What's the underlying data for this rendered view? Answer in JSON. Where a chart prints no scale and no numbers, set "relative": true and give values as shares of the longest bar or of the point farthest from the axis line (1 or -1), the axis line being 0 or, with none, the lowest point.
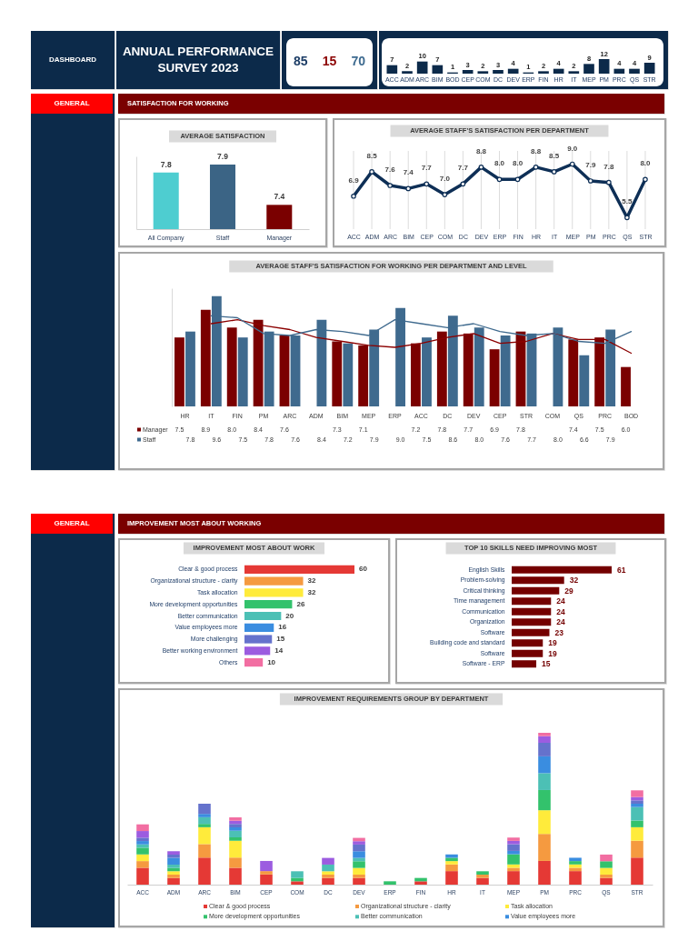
{
  "chart_data": [
    {
      "type": "other",
      "title": "ANNUAL PERFORMANCE SURVEY 2023",
      "annotations": [
        "DASHBOARD"
      ]
    },
    {
      "type": "other",
      "annotations": [
        "85",
        "15",
        "70"
      ],
      "colors": [
        "#1c3d66",
        "#8b0000",
        "#3d6a8f"
      ]
    },
    {
      "type": "bar",
      "categories": [
        "ACC",
        "ADM",
        "ARC",
        "BIM",
        "BOD",
        "CEP",
        "COM",
        "DC",
        "DEV",
        "ERP",
        "FIN",
        "HR",
        "IT",
        "MEP",
        "PM",
        "PRC",
        "QS",
        "STR"
      ],
      "values": [
        7,
        2,
        10,
        7,
        1,
        3,
        2,
        3,
        4,
        1,
        2,
        4,
        2,
        8,
        12,
        4,
        4,
        9
      ],
      "color": "#0c2a4a",
      "data_labels": true,
      "tick_labels": "x"
    },
    {
      "type": "other",
      "title": "SATISFACTION FOR WORKING",
      "annotations": [
        "GENERAL"
      ]
    },
    {
      "type": "bar",
      "title": "AVERAGE SATISFACTION",
      "categories": [
        "All Company",
        "Staff",
        "Manager"
      ],
      "values": [
        7.8,
        7.9,
        7.4
      ],
      "colors": [
        "#4ecdd0",
        "#3b6485",
        "#7a0000"
      ],
      "ylim": [
        7.1,
        8.0
      ],
      "data_labels": true,
      "tick_labels": "x"
    },
    {
      "type": "line",
      "title": "AVERAGE STAFF'S SATISFACTION PER DEPARTMENT",
      "categories": [
        "ACC",
        "ADM",
        "ARC",
        "BIM",
        "CEP",
        "COM",
        "DC",
        "DEV",
        "ERP",
        "FIN",
        "HR",
        "IT",
        "MEP",
        "PM",
        "PRC",
        "QS",
        "STR"
      ],
      "values": [
        6.9,
        8.5,
        7.6,
        7.4,
        7.7,
        7.0,
        7.7,
        8.8,
        8.0,
        8.0,
        8.8,
        8.5,
        9.0,
        7.9,
        7.8,
        5.5,
        8.0
      ],
      "value_labels": [
        "6.9",
        "8.5",
        "7.6",
        "7.4",
        "7.7",
        "7.0",
        "7.7",
        "8.8",
        "8.0",
        "8.0",
        "8.8",
        "8.5",
        "9.0",
        "7.9",
        "7.8",
        "5.5",
        "8.0"
      ],
      "color": "#0e2f56",
      "marker": "circle",
      "grid": "x",
      "tick_labels": "x"
    },
    {
      "type": "bar",
      "title": "AVERAGE STAFF'S SATISFACTION FOR WORKING PER DEPARTMENT AND LEVEL",
      "categories": [
        "HR",
        "IT",
        "FIN",
        "PM",
        "ARC",
        "ADM",
        "BIM",
        "MEP",
        "ERP",
        "ACC",
        "DC",
        "DEV",
        "CEP",
        "STR",
        "COM",
        "QS",
        "PRC",
        "BOD"
      ],
      "series": [
        {
          "name": "Manager",
          "color": "#7b0000",
          "values": [
            7.5,
            8.9,
            8.0,
            8.4,
            7.6,
            null,
            7.3,
            7.1,
            null,
            7.2,
            7.8,
            7.7,
            6.9,
            7.8,
            null,
            7.4,
            7.5,
            6.0
          ],
          "value_labels": [
            "7.5",
            "8.9",
            "8.0",
            "8.4",
            "7.6",
            null,
            "7.3",
            "7.1",
            null,
            "7.2",
            "7.8",
            "7.7",
            "6.9",
            "7.8",
            null,
            "7.4",
            "7.5",
            "6.0"
          ]
        },
        {
          "name": "Staff",
          "color": "#3f6a8e",
          "values": [
            7.8,
            9.6,
            7.5,
            7.8,
            7.6,
            8.4,
            7.2,
            7.9,
            9.0,
            7.5,
            8.6,
            8.0,
            7.6,
            7.7,
            8.0,
            6.6,
            7.9,
            null
          ],
          "value_labels": [
            "7.8",
            "9.6",
            "7.5",
            "7.8",
            "7.6",
            "8.4",
            "7.2",
            "7.9",
            "9.0",
            "7.5",
            "8.6",
            "8.0",
            "7.6",
            "7.7",
            "8.0",
            "6.6",
            "7.9",
            null
          ]
        },
        {
          "type": "line",
          "color": "#8b0000",
          "values": [
            null,
            8.2,
            8.4,
            8.1,
            7.9,
            7.5,
            7.3,
            7.1,
            7.0,
            7.2,
            7.5,
            7.7,
            7.2,
            7.3,
            7.7,
            7.4,
            7.4,
            6.7
          ]
        },
        {
          "type": "line",
          "color": "#3f6a8e",
          "values": [
            null,
            8.6,
            8.5,
            7.7,
            7.6,
            7.9,
            7.8,
            7.6,
            8.4,
            8.2,
            8.0,
            8.2,
            7.8,
            7.6,
            7.7,
            7.3,
            7.2,
            7.8
          ]
        }
      ],
      "ylim": [
        4,
        10
      ],
      "legend": "bottom left",
      "tick_labels": "x"
    },
    {
      "type": "other",
      "title": "IMPROVEMENT MOST ABOUT WORKING",
      "annotations": [
        "GENERAL"
      ]
    },
    {
      "type": "bar",
      "orientation": "horizontal",
      "title": "IMPROVEMENT MOST ABOUT WORK",
      "categories": [
        "Clear & good process",
        "Organizational structure - clarity",
        "Task allocation",
        "More development opportunities",
        "Better communication",
        "Value employees more",
        "More challenging",
        "Better working environment",
        "Others"
      ],
      "values": [
        60,
        32,
        32,
        26,
        20,
        16,
        15,
        14,
        10
      ],
      "colors": [
        "#e53935",
        "#f59a40",
        "#ffeb3b",
        "#33c26c",
        "#4cc0b5",
        "#3a8de0",
        "#6572cc",
        "#9c5ce0",
        "#f26ea2"
      ],
      "data_labels": true,
      "tick_labels": "y"
    },
    {
      "type": "bar",
      "orientation": "horizontal",
      "title": "TOP 10 SKILLS NEED IMPROVING MOST",
      "categories": [
        "English Skills",
        "Problem-solving",
        "Critical thinking",
        "Time management",
        "Communication",
        "Organization",
        "Software",
        "Building code and standard",
        "Software",
        "Software - ERP"
      ],
      "values": [
        61,
        32,
        29,
        24,
        24,
        24,
        23,
        19,
        19,
        15
      ],
      "color": "#740000",
      "data_labels": true,
      "tick_labels": "y"
    },
    {
      "type": "bar",
      "stacked": true,
      "relative": true,
      "title": "IMPROVEMENT REQUIREMENTS GROUP BY DEPARTMENT",
      "categories": [
        "ACC",
        "ADM",
        "ARC",
        "BIM",
        "CEP",
        "COM",
        "DC",
        "DEV",
        "ERP",
        "FIN",
        "HR",
        "IT",
        "MEP",
        "PM",
        "PRC",
        "QS",
        "STR"
      ],
      "series": [
        {
          "name": "Clear & good process",
          "color": "#e53935",
          "values": [
            0.111,
            0.044,
            0.178,
            0.111,
            0.067,
            0.022,
            0.044,
            0.044,
            null,
            0.022,
            0.089,
            0.044,
            0.089,
            0.156,
            0.089,
            0.044,
            0.178
          ]
        },
        {
          "name": "Organizational structure - clarity",
          "color": "#f59a40",
          "values": [
            0.044,
            0.022,
            0.089,
            0.067,
            0.022,
            null,
            0.022,
            0.022,
            null,
            null,
            0.044,
            0.022,
            0.022,
            0.178,
            0.022,
            0.022,
            0.111
          ]
        },
        {
          "name": "Task allocation",
          "color": "#ffeb3b",
          "values": [
            0.044,
            0.022,
            0.111,
            0.111,
            null,
            null,
            0.022,
            0.044,
            null,
            null,
            0.022,
            null,
            0.022,
            0.156,
            0.022,
            0.044,
            0.089
          ]
        },
        {
          "name": "More development opportunities",
          "color": "#33c26c",
          "values": [
            0.044,
            0.022,
            0.022,
            0.022,
            null,
            0.022,
            null,
            0.044,
            0.022,
            0.022,
            0.022,
            0.022,
            0.067,
            0.133,
            0.022,
            0.044,
            0.044
          ]
        },
        {
          "name": "Better communication",
          "color": "#4cc0b5",
          "values": [
            0.022,
            0.022,
            0.044,
            0.044,
            null,
            0.044,
            0.044,
            0.022,
            null,
            null,
            null,
            null,
            null,
            0.111,
            null,
            null,
            0.089
          ]
        },
        {
          "name": "Value employees more",
          "color": "#3a8de0",
          "values": [
            0.022,
            0.044,
            0.022,
            0.022,
            null,
            null,
            null,
            0.044,
            null,
            null,
            0.022,
            null,
            0.022,
            0.111,
            0.022,
            null,
            0.022
          ]
        },
        {
          "color": "#6572cc",
          "values": [
            0.022,
            0.022,
            0.067,
            0.022,
            null,
            null,
            null,
            0.044,
            null,
            null,
            null,
            null,
            0.044,
            0.089,
            null,
            null,
            0.022
          ]
        },
        {
          "color": "#9c5ce0",
          "values": [
            0.044,
            0.022,
            null,
            0.022,
            0.067,
            null,
            0.044,
            0.022,
            null,
            null,
            null,
            null,
            0.022,
            0.044,
            null,
            null,
            0.022
          ]
        },
        {
          "color": "#f26ea2",
          "values": [
            0.044,
            null,
            null,
            0.022,
            null,
            null,
            null,
            0.022,
            null,
            null,
            null,
            null,
            0.022,
            0.022,
            null,
            0.044,
            0.044
          ]
        }
      ],
      "legend": "bottom"
    }
  ]
}
